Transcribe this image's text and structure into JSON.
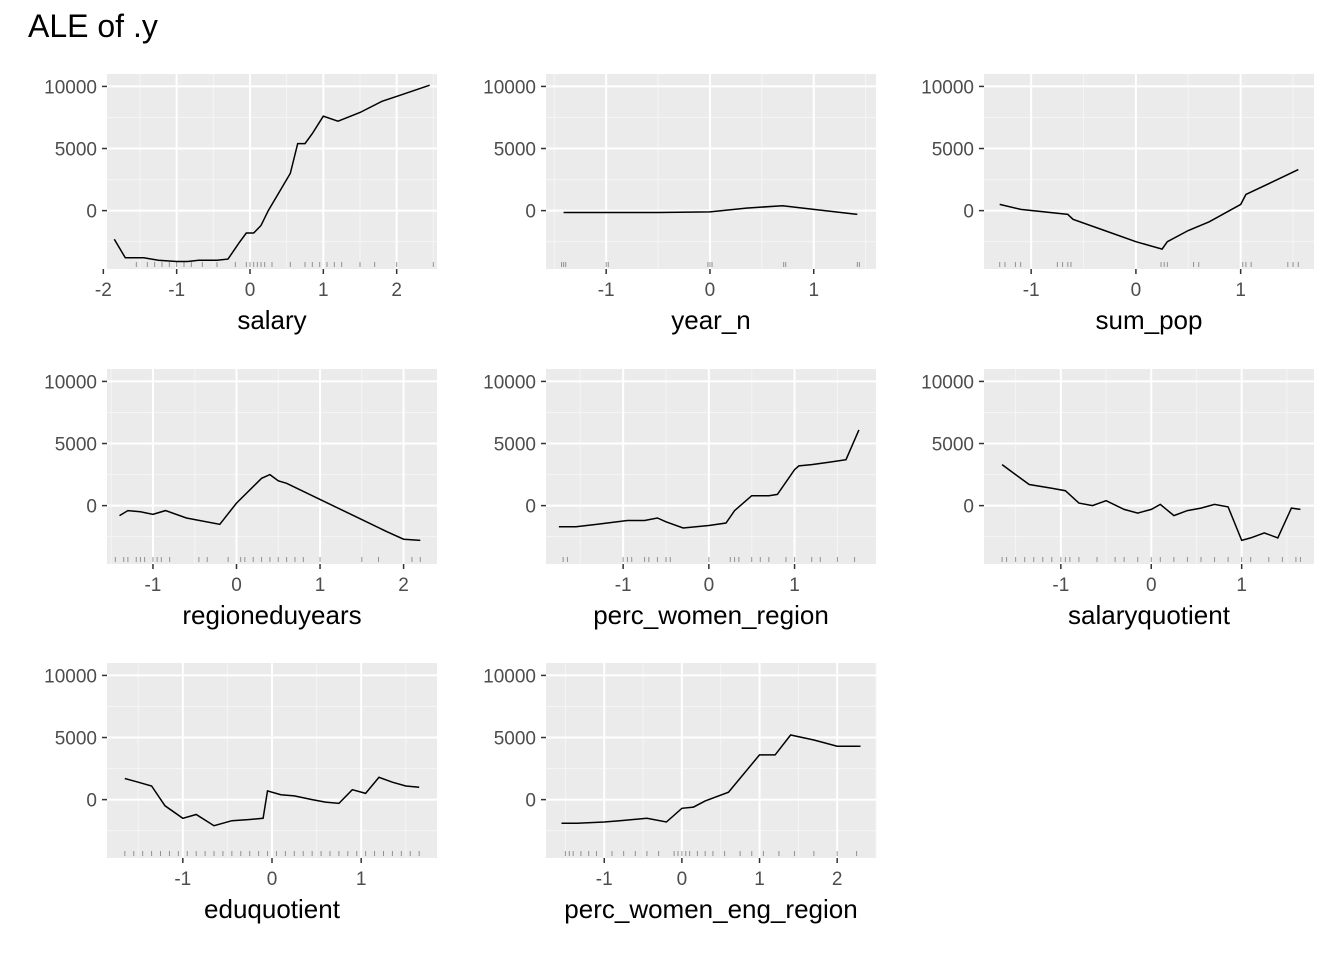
{
  "title": "ALE of .y",
  "chart_data": [
    {
      "type": "line",
      "xlabel": "salary",
      "ylabel": "",
      "xlim": [
        -1.95,
        2.55
      ],
      "ylim": [
        -4700,
        11000
      ],
      "xticks": [
        -2,
        -1,
        0,
        1,
        2
      ],
      "yticks": [
        0,
        5000,
        10000
      ],
      "x": [
        -1.85,
        -1.7,
        -1.45,
        -1.25,
        -1.0,
        -0.85,
        -0.7,
        -0.45,
        -0.3,
        -0.15,
        -0.05,
        0.05,
        0.15,
        0.25,
        0.4,
        0.55,
        0.65,
        0.75,
        0.85,
        1.0,
        1.2,
        1.5,
        1.8,
        2.1,
        2.45
      ],
      "y": [
        -2300,
        -3800,
        -3800,
        -4000,
        -4100,
        -4100,
        -4000,
        -4000,
        -3900,
        -2600,
        -1800,
        -1800,
        -1200,
        0,
        1500,
        3000,
        5400,
        5400,
        6200,
        7600,
        7200,
        7900,
        8800,
        9400,
        10100
      ],
      "rug": [
        -1.55,
        -1.4,
        -1.3,
        -1.2,
        -1.1,
        -1.0,
        -0.9,
        -0.8,
        -0.65,
        -0.45,
        -0.2,
        -0.05,
        0.0,
        0.05,
        0.1,
        0.15,
        0.2,
        0.3,
        0.55,
        0.75,
        0.85,
        0.95,
        1.05,
        1.15,
        1.25,
        1.5,
        1.7,
        2.0,
        2.5
      ]
    },
    {
      "type": "line",
      "xlabel": "year_n",
      "ylabel": "",
      "xlim": [
        -1.58,
        1.6
      ],
      "ylim": [
        -4700,
        11000
      ],
      "xticks": [
        -1,
        0,
        1
      ],
      "yticks": [
        0,
        5000,
        10000
      ],
      "x": [
        -1.41,
        -1.0,
        -0.5,
        0.0,
        0.35,
        0.7,
        1.0,
        1.42
      ],
      "y": [
        -150,
        -150,
        -150,
        -100,
        200,
        400,
        100,
        -300
      ],
      "rug": [
        -1.43,
        -1.41,
        -1.39,
        -1.0,
        -0.98,
        -0.02,
        0.0,
        0.02,
        0.71,
        0.73,
        1.42,
        1.44
      ]
    },
    {
      "type": "line",
      "xlabel": "sum_pop",
      "ylabel": "",
      "xlim": [
        -1.45,
        1.7
      ],
      "ylim": [
        -4700,
        11000
      ],
      "xticks": [
        -1,
        0,
        1
      ],
      "yticks": [
        0,
        5000,
        10000
      ],
      "x": [
        -1.3,
        -1.1,
        -0.65,
        -0.6,
        -0.3,
        0.0,
        0.25,
        0.3,
        0.5,
        0.7,
        1.0,
        1.05,
        1.3,
        1.55
      ],
      "y": [
        500,
        100,
        -300,
        -700,
        -1600,
        -2500,
        -3100,
        -2500,
        -1600,
        -900,
        500,
        1300,
        2300,
        3300
      ],
      "rug": [
        -1.3,
        -1.25,
        -1.15,
        -1.1,
        -0.75,
        -0.7,
        -0.65,
        -0.62,
        0.24,
        0.27,
        0.3,
        0.55,
        0.6,
        1.02,
        1.05,
        1.1,
        1.45,
        1.5,
        1.55
      ]
    },
    {
      "type": "line",
      "xlabel": "regioneduyears",
      "ylabel": "",
      "xlim": [
        -1.55,
        2.4
      ],
      "ylim": [
        -4700,
        11000
      ],
      "xticks": [
        -1,
        0,
        1,
        2
      ],
      "yticks": [
        0,
        5000,
        10000
      ],
      "x": [
        -1.4,
        -1.3,
        -1.15,
        -1.0,
        -0.85,
        -0.6,
        -0.2,
        0.0,
        0.3,
        0.4,
        0.5,
        0.6,
        1.0,
        1.4,
        1.8,
        2.0,
        2.2
      ],
      "y": [
        -800,
        -400,
        -500,
        -700,
        -400,
        -1000,
        -1500,
        200,
        2200,
        2500,
        2000,
        1800,
        500,
        -800,
        -2100,
        -2700,
        -2800
      ],
      "rug": [
        -1.45,
        -1.35,
        -1.3,
        -1.2,
        -1.15,
        -1.1,
        -1.0,
        -0.95,
        -0.9,
        -0.8,
        -0.45,
        -0.35,
        -0.1,
        0.05,
        0.1,
        0.2,
        0.3,
        0.4,
        0.5,
        0.6,
        0.7,
        0.8,
        1.0,
        1.5,
        1.7,
        2.1,
        2.2
      ]
    },
    {
      "type": "line",
      "xlabel": "perc_women_region",
      "ylabel": "",
      "xlim": [
        -1.9,
        1.95
      ],
      "ylim": [
        -4700,
        11000
      ],
      "xticks": [
        -1,
        0,
        1
      ],
      "yticks": [
        0,
        5000,
        10000
      ],
      "x": [
        -1.75,
        -1.55,
        -1.3,
        -0.95,
        -0.75,
        -0.6,
        -0.5,
        -0.3,
        0.0,
        0.2,
        0.3,
        0.5,
        0.7,
        0.8,
        1.0,
        1.05,
        1.2,
        1.4,
        1.6,
        1.75
      ],
      "y": [
        -1700,
        -1700,
        -1500,
        -1200,
        -1200,
        -1000,
        -1300,
        -1800,
        -1600,
        -1400,
        -400,
        800,
        800,
        900,
        2900,
        3200,
        3300,
        3500,
        3700,
        6100
      ],
      "rug": [
        -1.7,
        -1.65,
        -1.0,
        -0.95,
        -0.9,
        -0.75,
        -0.7,
        -0.6,
        -0.5,
        -0.45,
        0.0,
        0.25,
        0.3,
        0.35,
        0.5,
        0.6,
        0.7,
        0.9,
        1.0,
        1.2,
        1.3,
        1.5,
        1.7
      ]
    },
    {
      "type": "line",
      "xlabel": "salaryquotient",
      "ylabel": "",
      "xlim": [
        -1.85,
        1.8
      ],
      "ylim": [
        -4700,
        11000
      ],
      "xticks": [
        -1,
        0,
        1
      ],
      "yticks": [
        0,
        5000,
        10000
      ],
      "x": [
        -1.65,
        -1.5,
        -1.35,
        -1.1,
        -0.95,
        -0.8,
        -0.65,
        -0.5,
        -0.3,
        -0.15,
        0.0,
        0.1,
        0.25,
        0.4,
        0.55,
        0.7,
        0.85,
        1.0,
        1.1,
        1.25,
        1.4,
        1.55,
        1.65
      ],
      "y": [
        3300,
        2500,
        1700,
        1400,
        1200,
        200,
        0,
        400,
        -300,
        -600,
        -300,
        100,
        -800,
        -400,
        -200,
        100,
        -100,
        -2800,
        -2600,
        -2200,
        -2600,
        -200,
        -300
      ],
      "rug": [
        -1.65,
        -1.6,
        -1.5,
        -1.4,
        -1.3,
        -1.2,
        -1.1,
        -1.0,
        -0.95,
        -0.9,
        -0.8,
        -0.6,
        -0.4,
        -0.3,
        -0.15,
        0.0,
        0.1,
        0.25,
        0.4,
        0.55,
        0.7,
        0.85,
        1.0,
        1.1,
        1.3,
        1.45,
        1.6,
        1.65
      ]
    },
    {
      "type": "line",
      "xlabel": "eduquotient",
      "ylabel": "",
      "xlim": [
        -1.85,
        1.85
      ],
      "ylim": [
        -4700,
        11000
      ],
      "xticks": [
        -1,
        0,
        1
      ],
      "yticks": [
        0,
        5000,
        10000
      ],
      "x": [
        -1.65,
        -1.5,
        -1.35,
        -1.2,
        -1.0,
        -0.85,
        -0.65,
        -0.45,
        -0.25,
        -0.1,
        -0.05,
        0.1,
        0.25,
        0.45,
        0.6,
        0.75,
        0.9,
        1.05,
        1.2,
        1.35,
        1.5,
        1.65
      ],
      "y": [
        1700,
        1400,
        1100,
        -500,
        -1500,
        -1200,
        -2100,
        -1700,
        -1600,
        -1500,
        700,
        400,
        300,
        0,
        -200,
        -300,
        800,
        500,
        1800,
        1400,
        1100,
        1000
      ],
      "rug": [
        -1.65,
        -1.55,
        -1.45,
        -1.35,
        -1.25,
        -1.15,
        -1.05,
        -0.95,
        -0.85,
        -0.75,
        -0.65,
        -0.55,
        -0.45,
        -0.35,
        -0.25,
        -0.15,
        -0.05,
        0.05,
        0.15,
        0.25,
        0.35,
        0.45,
        0.55,
        0.65,
        0.75,
        0.85,
        0.95,
        1.05,
        1.15,
        1.25,
        1.35,
        1.45,
        1.55,
        1.65
      ]
    },
    {
      "type": "line",
      "xlabel": "perc_women_eng_region",
      "ylabel": "",
      "xlim": [
        -1.75,
        2.5
      ],
      "ylim": [
        -4700,
        11000
      ],
      "xticks": [
        -1,
        0,
        1,
        2
      ],
      "yticks": [
        0,
        5000,
        10000
      ],
      "x": [
        -1.55,
        -1.35,
        -1.0,
        -0.8,
        -0.45,
        -0.2,
        0.0,
        0.15,
        0.3,
        0.6,
        1.0,
        1.2,
        1.4,
        1.7,
        2.0,
        2.3
      ],
      "y": [
        -1900,
        -1900,
        -1800,
        -1700,
        -1500,
        -1800,
        -700,
        -600,
        -100,
        600,
        3600,
        3600,
        5200,
        4800,
        4300,
        4300
      ],
      "rug": [
        -1.5,
        -1.45,
        -1.4,
        -1.3,
        -1.2,
        -1.1,
        -0.9,
        -0.75,
        -0.6,
        -0.45,
        -0.3,
        -0.1,
        -0.05,
        0.0,
        0.05,
        0.1,
        0.2,
        0.3,
        0.4,
        0.55,
        0.75,
        0.9,
        1.05,
        1.25,
        1.45,
        1.7,
        2.0,
        2.25
      ]
    }
  ]
}
